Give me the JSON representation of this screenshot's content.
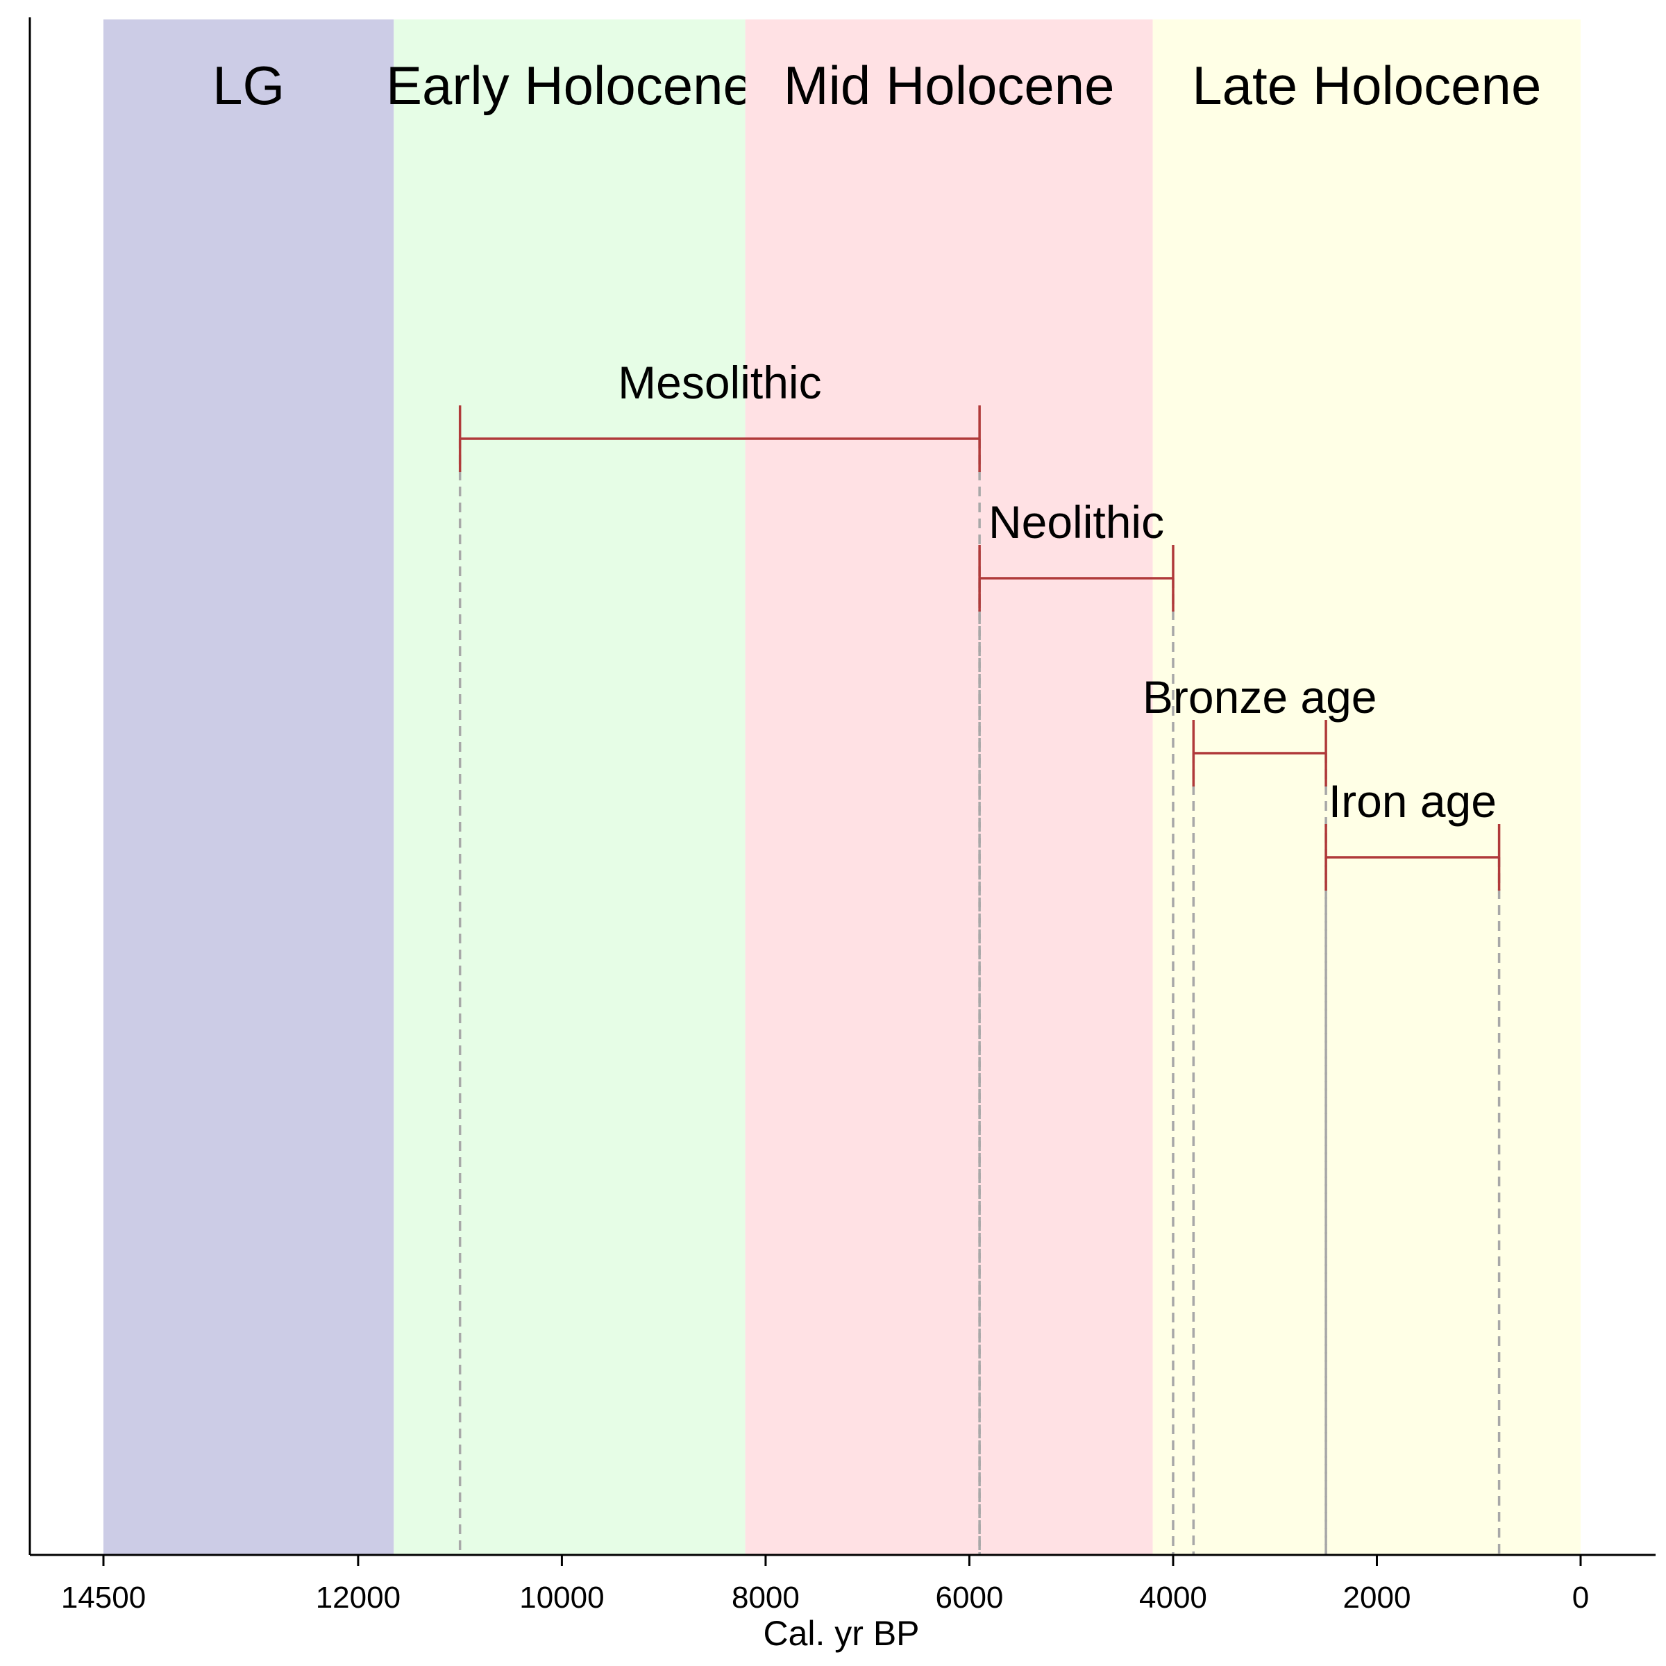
{
  "chart_data": {
    "type": "timeline",
    "xlabel": "Cal. yr BP",
    "xlim": [
      14500,
      0
    ],
    "x_axis_reversed": true,
    "x_ticks": [
      {
        "value": 14500,
        "label": "14500"
      },
      {
        "value": 12000,
        "label": "12000"
      },
      {
        "value": 10000,
        "label": "10000"
      },
      {
        "value": 8000,
        "label": "8000"
      },
      {
        "value": 6000,
        "label": "6000"
      },
      {
        "value": 4000,
        "label": "4000"
      },
      {
        "value": 2000,
        "label": "2000"
      },
      {
        "value": 0,
        "label": "0"
      }
    ],
    "periods": [
      {
        "label": "LG",
        "start": 14500,
        "end": 11650,
        "color": "#cccce6"
      },
      {
        "label": "Early Holocene",
        "start": 11650,
        "end": 8200,
        "color": "#e6fde6"
      },
      {
        "label": "Mid Holocene",
        "start": 8200,
        "end": 4200,
        "color": "#ffe1e4"
      },
      {
        "label": "Late Holocene",
        "start": 4200,
        "end": 0,
        "color": "#ffffe6"
      }
    ],
    "cultural_periods": [
      {
        "label": "Mesolithic",
        "start": 11000,
        "end": 5900
      },
      {
        "label": "Neolithic",
        "start": 5900,
        "end": 4000
      },
      {
        "label": "Bronze age",
        "start": 3800,
        "end": 2500
      },
      {
        "label": "Iron age",
        "start": 2500,
        "end": 800
      }
    ],
    "range_color": "#b03a3a",
    "guide_color": "#a8a8a8",
    "grid": false,
    "legend": "none"
  }
}
